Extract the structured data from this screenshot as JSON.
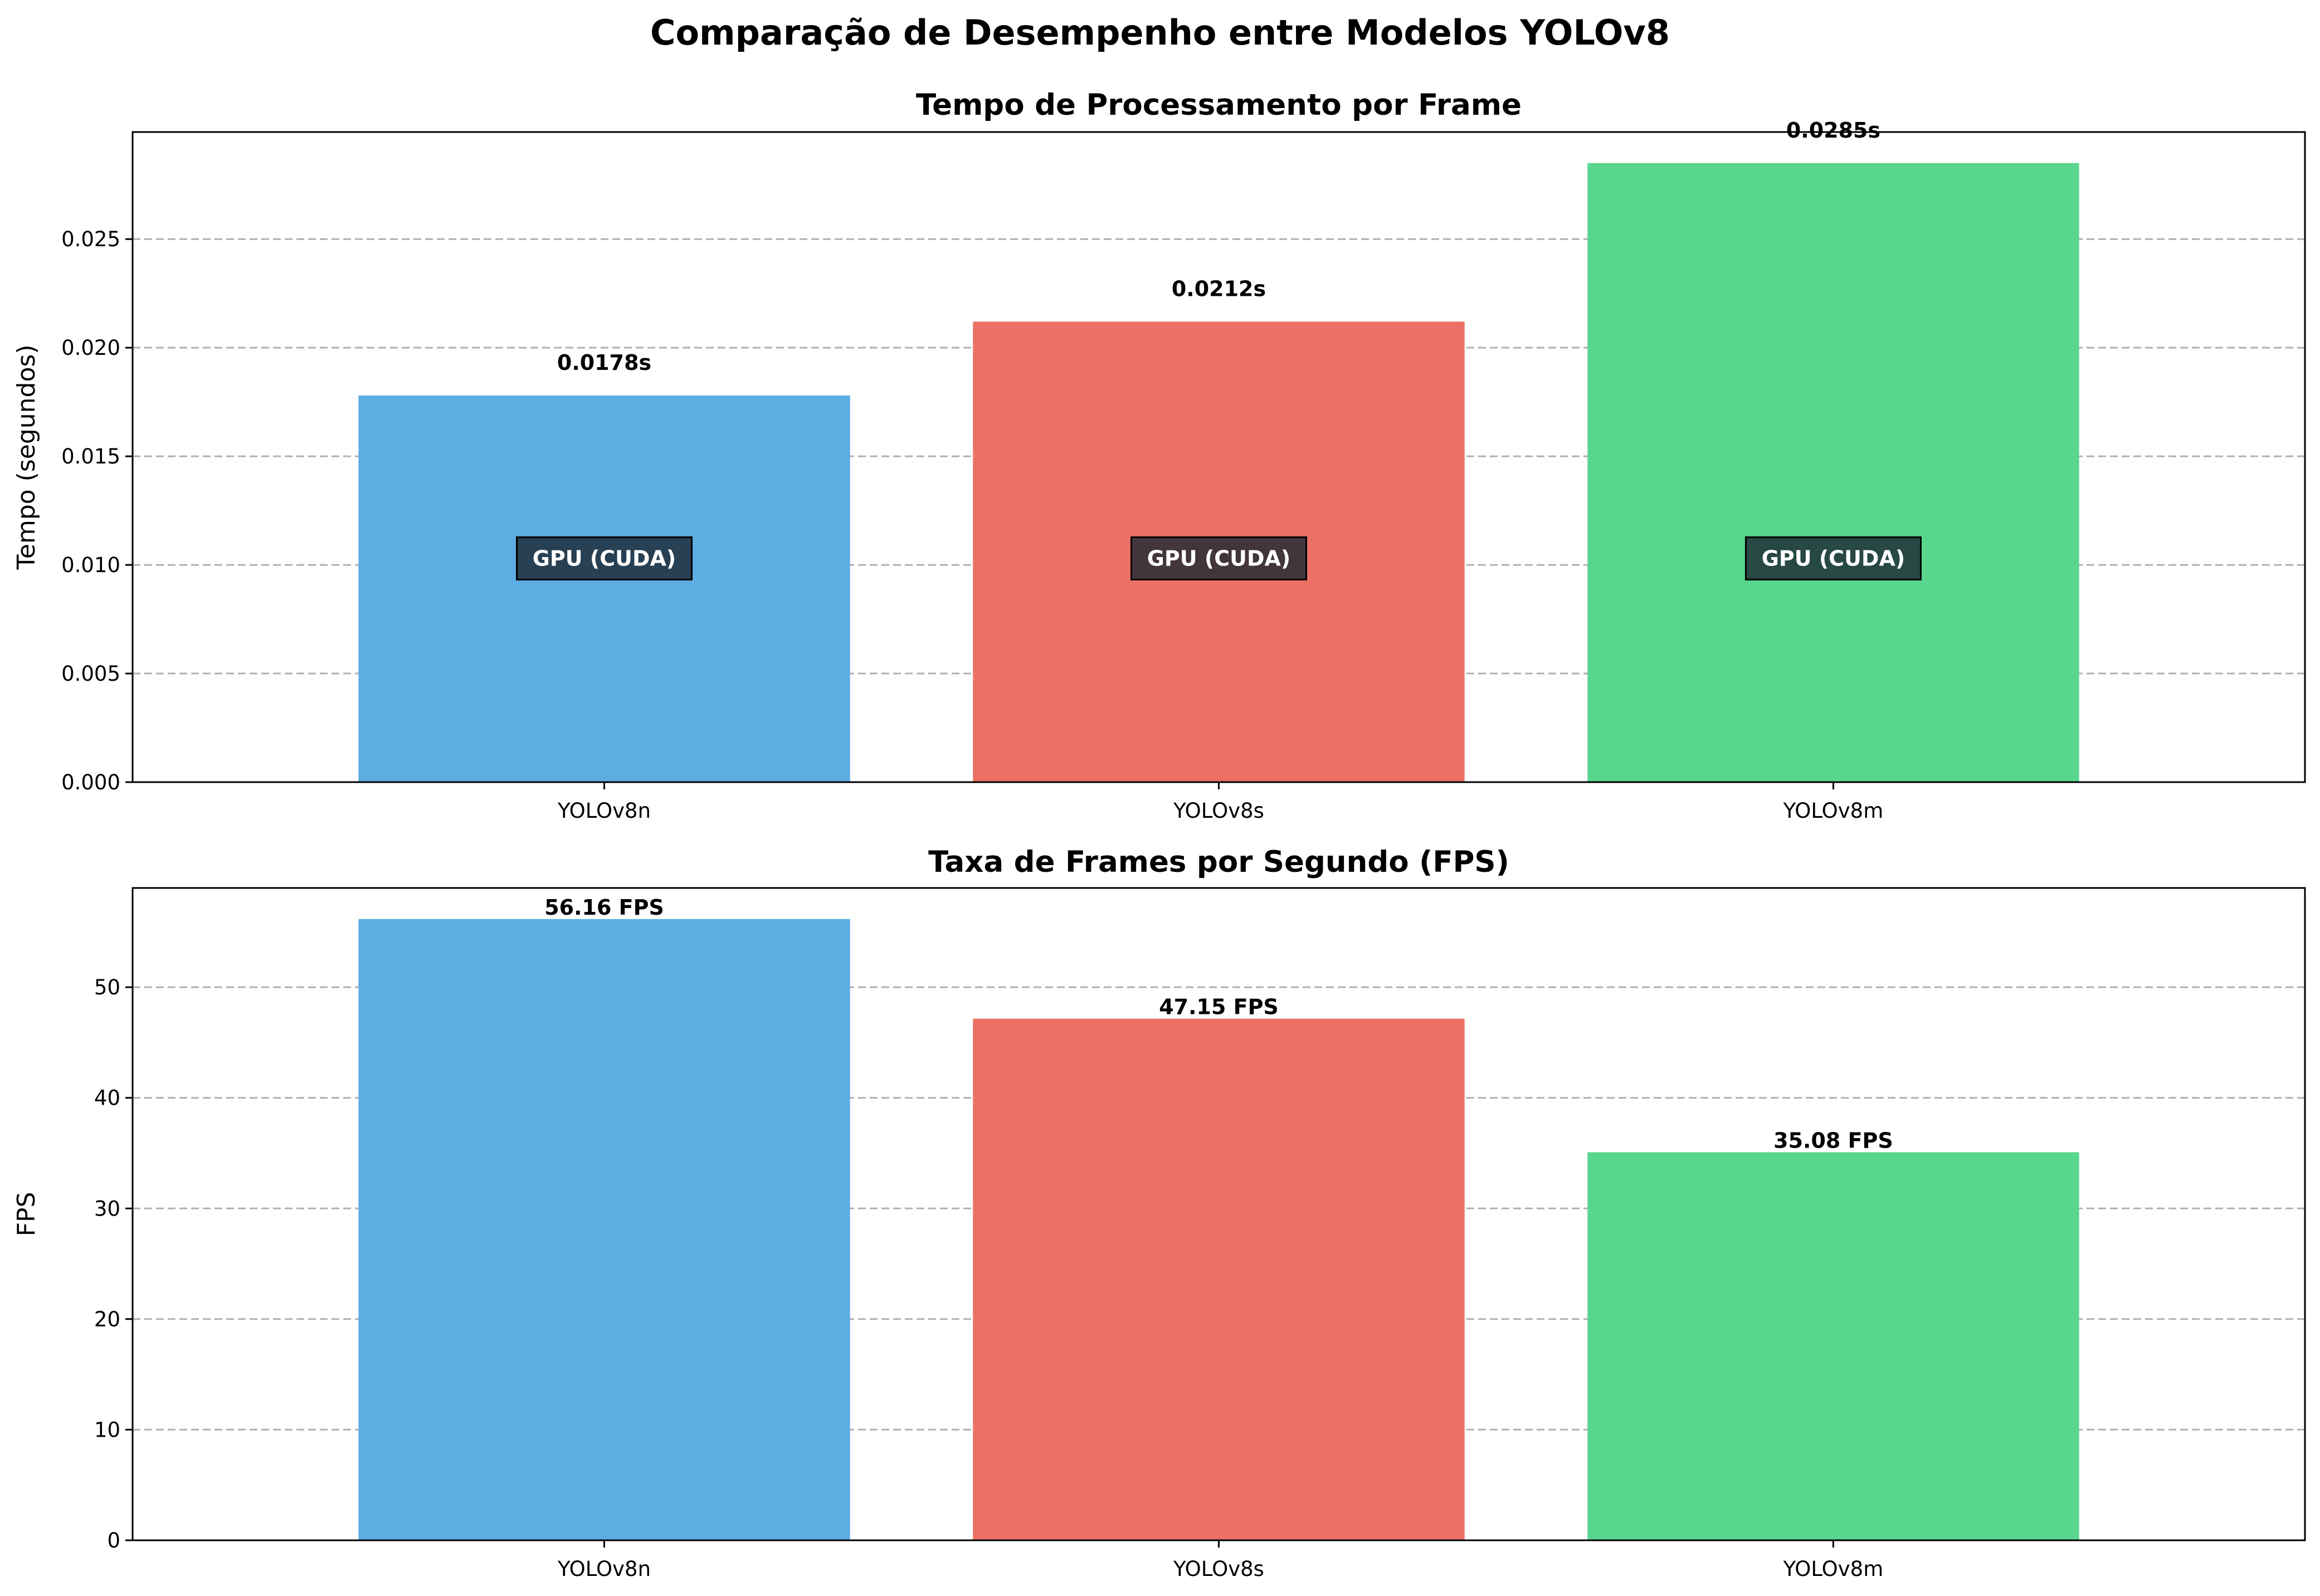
{
  "figure": {
    "title": "Comparação de Desempenho entre Modelos YOLOv8"
  },
  "chart_data": [
    {
      "type": "bar",
      "title": "Tempo de Processamento por Frame",
      "xlabel": "",
      "ylabel": "Tempo (segundos)",
      "categories": [
        "YOLOv8n",
        "YOLOv8s",
        "YOLOv8m"
      ],
      "values": [
        0.0178,
        0.0212,
        0.0285
      ],
      "value_labels": [
        "0.0178s",
        "0.0212s",
        "0.0285s"
      ],
      "inner_labels": [
        "GPU (CUDA)",
        "GPU (CUDA)",
        "GPU (CUDA)"
      ],
      "inner_label_y": 0.0103,
      "colors": [
        "#5dade2",
        "#ec7063",
        "#58d68d"
      ],
      "inner_box_color": "#1c2833",
      "ylim": [
        0,
        0.02993
      ],
      "yticks": [
        0,
        0.005,
        0.01,
        0.015,
        0.02,
        0.025
      ],
      "ytick_labels": [
        "0.000",
        "0.005",
        "0.010",
        "0.015",
        "0.020",
        "0.025"
      ],
      "grid": true
    },
    {
      "type": "bar",
      "title": "Taxa de Frames por Segundo (FPS)",
      "xlabel": "",
      "ylabel": "FPS",
      "categories": [
        "YOLOv8n",
        "YOLOv8s",
        "YOLOv8m"
      ],
      "values": [
        56.16,
        47.15,
        35.08
      ],
      "value_labels": [
        "56.16 FPS",
        "47.15 FPS",
        "35.08 FPS"
      ],
      "colors": [
        "#5dade2",
        "#ec7063",
        "#58d68d"
      ],
      "ylim": [
        0,
        58.97
      ],
      "yticks": [
        0,
        10,
        20,
        30,
        40,
        50
      ],
      "ytick_labels": [
        "0",
        "10",
        "20",
        "30",
        "40",
        "50"
      ],
      "grid": true
    }
  ]
}
